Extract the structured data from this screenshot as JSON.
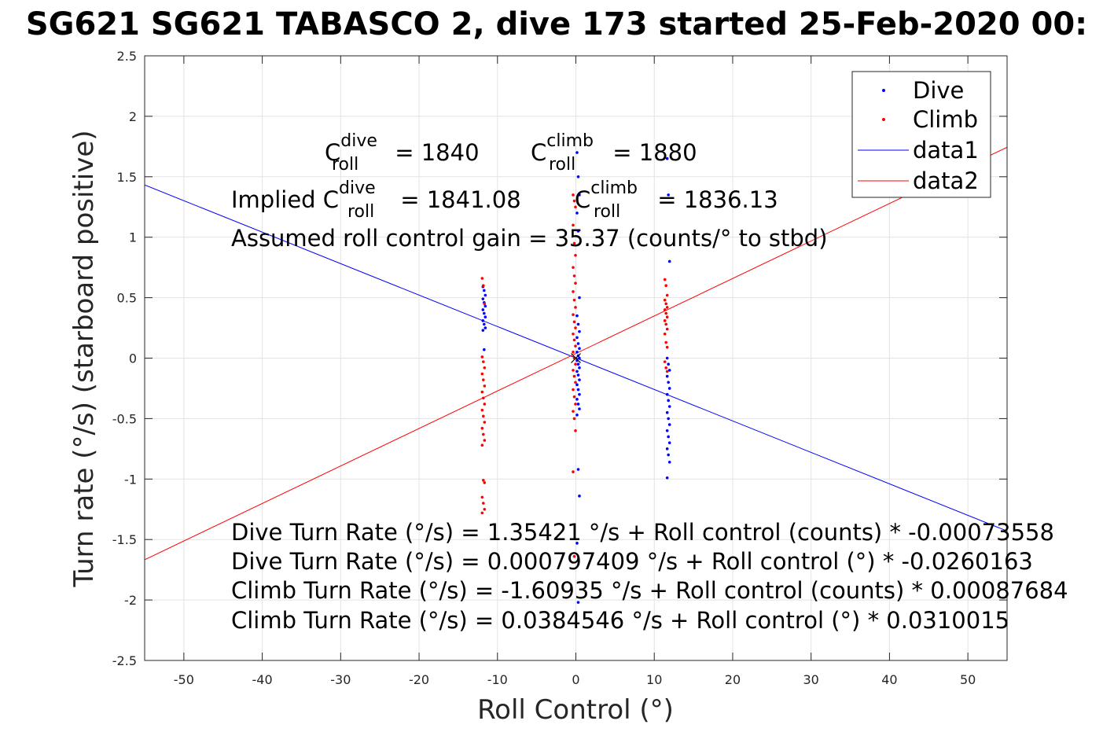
{
  "chart_data": {
    "type": "scatter",
    "title": "SG621 SG621 TABASCO 2, dive 173 started 25-Feb-2020 00:",
    "xlabel": "Roll Control (°)",
    "ylabel": "Turn rate (°/s) (starboard positive)",
    "xlim": [
      -55,
      55
    ],
    "ylim": [
      -2.5,
      2.5
    ],
    "x_ticks": [
      -50,
      -40,
      -30,
      -20,
      -10,
      0,
      10,
      20,
      30,
      40,
      50
    ],
    "y_ticks": [
      2.5,
      2,
      1.5,
      1,
      0.5,
      0,
      -0.5,
      -1,
      -1.5,
      -2,
      -2.5
    ],
    "grid": true,
    "legend_position": "top-right",
    "legend": [
      {
        "label": "Dive",
        "kind": "marker",
        "color": "#0000ff"
      },
      {
        "label": "Climb",
        "kind": "marker",
        "color": "#ff0000"
      },
      {
        "label": "data1",
        "kind": "line",
        "color": "#0000ff"
      },
      {
        "label": "data2",
        "kind": "line",
        "color": "#ff0000"
      }
    ],
    "series": [
      {
        "name": "Dive",
        "color": "#0000ff",
        "kind": "scatter",
        "clusters": [
          {
            "x": -11.7,
            "y_values": [
              0.59,
              0.56,
              0.52,
              0.49,
              0.46,
              0.43,
              0.4,
              0.37,
              0.34,
              0.31,
              0.28,
              0.25,
              0.23,
              0.07
            ]
          },
          {
            "x": 0.3,
            "y_values": [
              1.7,
              1.5,
              1.35,
              1.2,
              1.05,
              0.5,
              0.35,
              0.28,
              0.22,
              0.17,
              0.12,
              0.08,
              0.05,
              0.02,
              0.0,
              -0.02,
              -0.05,
              -0.08,
              -0.11,
              -0.14,
              -0.18,
              -0.22,
              -0.26,
              -0.3,
              -0.34,
              -0.38,
              -0.42,
              -0.47,
              -0.92,
              -1.14,
              -1.53,
              -2.02
            ]
          },
          {
            "x": 11.8,
            "y_values": [
              1.65,
              1.35,
              0.8,
              0.0,
              -0.05,
              -0.1,
              -0.15,
              -0.2,
              -0.25,
              -0.3,
              -0.35,
              -0.4,
              -0.45,
              -0.5,
              -0.55,
              -0.6,
              -0.65,
              -0.7,
              -0.75,
              -0.8,
              -0.86,
              -0.99
            ]
          }
        ]
      },
      {
        "name": "Climb",
        "color": "#ff0000",
        "kind": "scatter",
        "clusters": [
          {
            "x": -11.8,
            "y_values": [
              0.66,
              0.6,
              0.45,
              0.01,
              -0.03,
              -0.08,
              -0.13,
              -0.18,
              -0.23,
              -0.28,
              -0.33,
              -0.38,
              -0.43,
              -0.48,
              -0.53,
              -0.58,
              -0.63,
              -0.68,
              -0.72,
              -1.01,
              -1.03,
              -1.15,
              -1.2,
              -1.25,
              -1.28
            ]
          },
          {
            "x": -0.2,
            "y_values": [
              1.35,
              1.3,
              1.25,
              1.1,
              0.95,
              0.85,
              0.75,
              0.68,
              0.62,
              0.55,
              0.48,
              0.42,
              0.36,
              0.3,
              0.25,
              0.2,
              0.15,
              0.1,
              0.05,
              0.0,
              -0.05,
              -0.1,
              -0.15,
              -0.2,
              -0.26,
              -0.32,
              -0.38,
              -0.44,
              -0.5,
              -0.6,
              -0.94,
              -1.64
            ]
          },
          {
            "x": 11.5,
            "y_values": [
              0.65,
              0.6,
              0.52,
              0.48,
              0.45,
              0.42,
              0.4,
              0.37,
              0.34,
              0.31,
              0.28,
              0.24,
              0.2,
              0.13,
              0.09,
              -0.03,
              -0.08,
              -0.11
            ]
          }
        ]
      },
      {
        "name": "data1",
        "color": "#0000ff",
        "kind": "line",
        "x": [
          -55,
          55
        ],
        "y": [
          1.432,
          -1.43
        ]
      },
      {
        "name": "data2",
        "color": "#ff0000",
        "kind": "line",
        "x": [
          -55,
          55
        ],
        "y": [
          -1.667,
          1.744
        ]
      }
    ],
    "annotations": {
      "c_roll_dive": {
        "base": "C",
        "sup": "dive",
        "sub": "roll",
        "rest": " = 1840"
      },
      "c_roll_climb": {
        "base": "C",
        "sup": "climb",
        "sub": "roll",
        "rest": " = 1880"
      },
      "implied_dive": {
        "prefix": "Implied C",
        "sup": "dive",
        "sub": "roll",
        "rest": " = 1841.08"
      },
      "implied_climb": {
        "base": "C",
        "sup": "climb",
        "sub": "roll",
        "rest": " = 1836.13"
      },
      "gain": "Assumed roll control gain = 35.37 (counts/° to stbd)",
      "eq1": "Dive Turn Rate (°/s) = 1.35421 °/s + Roll control (counts) * -0.00073558",
      "eq2": "Dive Turn Rate (°/s) = 0.000797409 °/s + Roll control (°) * -0.0260163",
      "eq3": "Climb Turn Rate (°/s) = -1.60935 °/s + Roll control (counts) * 0.00087684",
      "eq4": "Climb Turn Rate (°/s) = 0.0384546 °/s + Roll control (°) * 0.0310015"
    }
  }
}
